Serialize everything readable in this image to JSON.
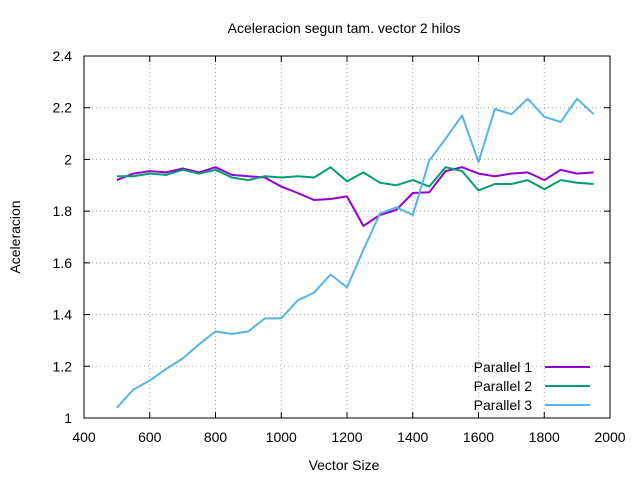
{
  "chart_data": {
    "type": "line",
    "title": "Aceleracion segun tam. vector 2 hilos",
    "xlabel": "Vector Size",
    "ylabel": "Aceleracion",
    "xlim": [
      400,
      2000
    ],
    "ylim": [
      1,
      2.4
    ],
    "x_ticks": [
      400,
      600,
      800,
      1000,
      1200,
      1400,
      1600,
      1800,
      2000
    ],
    "x_tick_labels": [
      "400",
      "600",
      "800",
      "1000",
      "1200",
      "1400",
      "1600",
      "1800",
      "2000"
    ],
    "y_ticks": [
      1,
      1.2,
      1.4,
      1.6,
      1.8,
      2,
      2.2,
      2.4
    ],
    "y_tick_labels": [
      "1",
      "1.2",
      "1.4",
      "1.6",
      "1.8",
      "2",
      "2.2",
      "2.4"
    ],
    "grid": true,
    "legend_position": "bottom-right",
    "x": [
      500,
      550,
      600,
      650,
      700,
      750,
      800,
      850,
      900,
      950,
      1000,
      1050,
      1100,
      1150,
      1200,
      1250,
      1300,
      1350,
      1400,
      1450,
      1500,
      1550,
      1600,
      1650,
      1700,
      1750,
      1800,
      1850,
      1900,
      1950
    ],
    "series": [
      {
        "name": "Parallel 1",
        "color": "#9400d3",
        "values": [
          1.92,
          1.945,
          1.955,
          1.95,
          1.965,
          1.95,
          1.97,
          1.94,
          1.935,
          1.93,
          1.895,
          1.87,
          1.843,
          1.847,
          1.857,
          1.743,
          1.785,
          1.805,
          1.87,
          1.873,
          1.955,
          1.97,
          1.945,
          1.935,
          1.945,
          1.95,
          1.92,
          1.96,
          1.945,
          1.95
        ]
      },
      {
        "name": "Parallel 2",
        "color": "#009e73",
        "values": [
          1.935,
          1.935,
          1.945,
          1.94,
          1.96,
          1.945,
          1.96,
          1.93,
          1.92,
          1.935,
          1.93,
          1.935,
          1.93,
          1.97,
          1.915,
          1.95,
          1.91,
          1.9,
          1.92,
          1.895,
          1.97,
          1.955,
          1.88,
          1.905,
          1.905,
          1.92,
          1.885,
          1.92,
          1.91,
          1.905
        ]
      },
      {
        "name": "Parallel 3",
        "color": "#56b4e9",
        "values": [
          1.04,
          1.11,
          1.145,
          1.19,
          1.23,
          1.285,
          1.335,
          1.325,
          1.335,
          1.385,
          1.385,
          1.455,
          1.485,
          1.555,
          1.505,
          1.65,
          1.79,
          1.815,
          1.785,
          1.995,
          2.08,
          2.17,
          1.99,
          2.195,
          2.175,
          2.235,
          2.165,
          2.145,
          2.235,
          2.175
        ]
      }
    ]
  }
}
